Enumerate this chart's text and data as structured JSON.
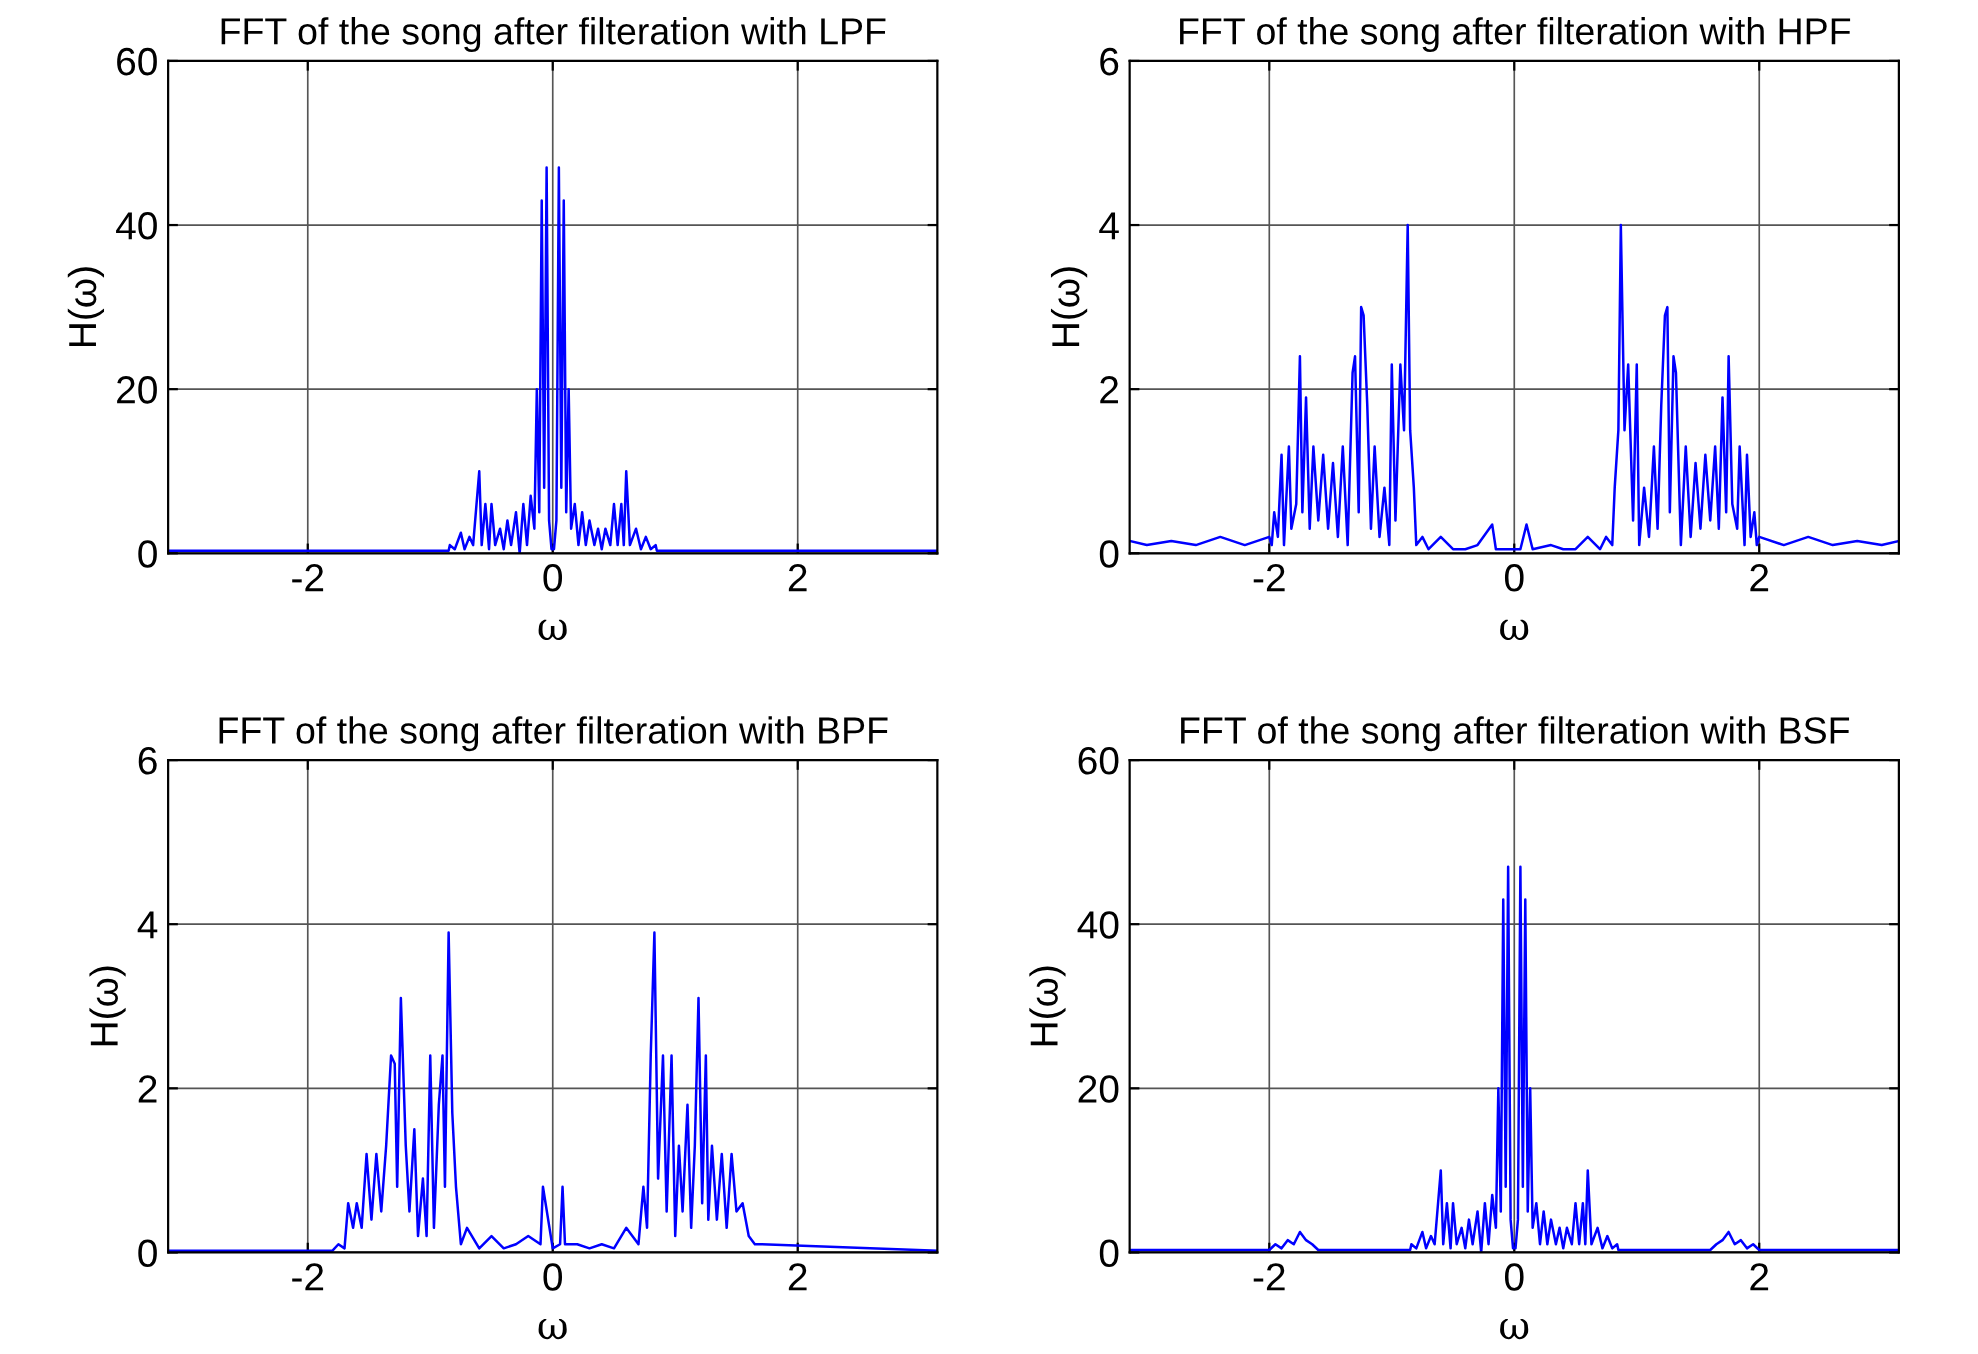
{
  "chart_data": [
    {
      "type": "line",
      "title": "FFT of the song after filteration with LPF",
      "xlabel": "ω",
      "ylabel": "H(ω)",
      "xlim": [
        -3.14,
        3.14
      ],
      "ylim": [
        0,
        60
      ],
      "xticks": [
        -2,
        0,
        2
      ],
      "yticks": [
        0,
        20,
        40,
        60
      ],
      "grid": true,
      "x": [
        -3.14,
        -0.85,
        -0.84,
        -0.8,
        -0.75,
        -0.72,
        -0.68,
        -0.65,
        -0.6,
        -0.58,
        -0.55,
        -0.52,
        -0.5,
        -0.47,
        -0.43,
        -0.4,
        -0.37,
        -0.34,
        -0.3,
        -0.27,
        -0.24,
        -0.21,
        -0.18,
        -0.15,
        -0.13,
        -0.11,
        -0.09,
        -0.07,
        -0.05,
        -0.03,
        -0.01,
        0.01,
        0.03,
        0.05,
        0.07,
        0.09,
        0.11,
        0.13,
        0.15,
        0.18,
        0.21,
        0.24,
        0.27,
        0.3,
        0.34,
        0.37,
        0.4,
        0.43,
        0.47,
        0.5,
        0.53,
        0.56,
        0.58,
        0.6,
        0.63,
        0.68,
        0.72,
        0.76,
        0.8,
        0.84,
        0.85,
        3.14
      ],
      "series": [
        {
          "color": "#0000ff",
          "values": [
            0.3,
            0.3,
            1,
            0.5,
            2.5,
            0.5,
            2,
            1,
            10,
            1,
            6,
            0.5,
            6,
            1,
            3,
            0.5,
            4,
            1,
            5,
            0,
            6,
            1,
            7,
            3,
            20,
            5,
            43,
            8,
            47,
            4,
            0.5,
            0.5,
            4,
            47,
            8,
            43,
            5,
            20,
            3,
            6,
            1,
            5,
            1,
            4,
            1,
            3,
            0.5,
            3,
            1,
            6,
            1,
            6,
            1,
            10,
            1,
            3,
            0.5,
            2,
            0.5,
            1,
            0.3,
            0.3
          ]
        }
      ]
    },
    {
      "type": "line",
      "title": "FFT of the song after filteration with HPF",
      "xlabel": "ω",
      "ylabel": "H(ω)",
      "xlim": [
        -3.14,
        3.14
      ],
      "ylim": [
        0,
        6
      ],
      "xticks": [
        -2,
        0,
        2
      ],
      "yticks": [
        0,
        2,
        4,
        6
      ],
      "grid": true,
      "x": [
        -3.14,
        -3.0,
        -2.8,
        -2.6,
        -2.4,
        -2.2,
        -2.0,
        -1.98,
        -1.96,
        -1.93,
        -1.9,
        -1.88,
        -1.84,
        -1.82,
        -1.78,
        -1.75,
        -1.73,
        -1.7,
        -1.67,
        -1.64,
        -1.6,
        -1.56,
        -1.52,
        -1.48,
        -1.44,
        -1.4,
        -1.36,
        -1.32,
        -1.3,
        -1.27,
        -1.25,
        -1.23,
        -1.2,
        -1.17,
        -1.14,
        -1.1,
        -1.06,
        -1.02,
        -1.0,
        -0.97,
        -0.93,
        -0.9,
        -0.87,
        -0.85,
        -0.82,
        -0.8,
        -0.75,
        -0.7,
        -0.6,
        -0.5,
        -0.4,
        -0.3,
        -0.18,
        -0.15,
        -0.05,
        0.05,
        0.1,
        0.15,
        0.3,
        0.4,
        0.5,
        0.6,
        0.7,
        0.75,
        0.8,
        0.82,
        0.85,
        0.87,
        0.9,
        0.93,
        0.97,
        1.0,
        1.02,
        1.06,
        1.1,
        1.14,
        1.17,
        1.2,
        1.23,
        1.25,
        1.27,
        1.3,
        1.32,
        1.36,
        1.4,
        1.44,
        1.48,
        1.52,
        1.56,
        1.6,
        1.64,
        1.67,
        1.7,
        1.73,
        1.75,
        1.78,
        1.82,
        1.84,
        1.88,
        1.9,
        1.93,
        1.96,
        1.98,
        2.0,
        2.2,
        2.4,
        2.6,
        2.8,
        3.0,
        3.14
      ],
      "series": [
        {
          "color": "#0000ff",
          "values": [
            0.15,
            0.1,
            0.15,
            0.1,
            0.2,
            0.1,
            0.2,
            0.1,
            0.5,
            0.2,
            1.2,
            0.1,
            1.3,
            0.3,
            0.6,
            2.4,
            0.5,
            1.9,
            0.3,
            1.3,
            0.4,
            1.2,
            0.3,
            1.1,
            0.2,
            1.3,
            0.1,
            2.2,
            2.4,
            0.5,
            3.0,
            2.9,
            1.8,
            0.3,
            1.3,
            0.2,
            0.8,
            0.1,
            2.3,
            0.4,
            2.3,
            1.5,
            4.0,
            1.5,
            0.8,
            0.1,
            0.2,
            0.05,
            0.2,
            0.05,
            0.05,
            0.1,
            0.35,
            0.05,
            0.05,
            0.05,
            0.35,
            0.05,
            0.1,
            0.05,
            0.05,
            0.2,
            0.05,
            0.2,
            0.1,
            0.8,
            1.5,
            4.0,
            1.5,
            2.3,
            0.4,
            2.3,
            0.1,
            0.8,
            0.2,
            1.3,
            0.3,
            1.8,
            2.9,
            3.0,
            0.5,
            2.4,
            2.2,
            0.1,
            1.3,
            0.2,
            1.1,
            0.3,
            1.2,
            0.4,
            1.3,
            0.3,
            1.9,
            0.5,
            2.4,
            0.6,
            0.3,
            1.3,
            0.1,
            1.2,
            0.2,
            0.5,
            0.1,
            0.2,
            0.1,
            0.2,
            0.1,
            0.15,
            0.1,
            0.15
          ]
        }
      ]
    },
    {
      "type": "line",
      "title": "FFT of the song after filteration with BPF",
      "xlabel": "ω",
      "ylabel": "H(ω)",
      "xlim": [
        -3.14,
        3.14
      ],
      "ylim": [
        0,
        6
      ],
      "xticks": [
        -2,
        0,
        2
      ],
      "yticks": [
        0,
        2,
        4,
        6
      ],
      "grid": true,
      "x": [
        -3.14,
        -1.8,
        -1.75,
        -1.7,
        -1.67,
        -1.63,
        -1.6,
        -1.56,
        -1.52,
        -1.48,
        -1.44,
        -1.4,
        -1.36,
        -1.32,
        -1.29,
        -1.27,
        -1.24,
        -1.2,
        -1.17,
        -1.13,
        -1.1,
        -1.06,
        -1.03,
        -1.0,
        -0.97,
        -0.93,
        -0.9,
        -0.88,
        -0.85,
        -0.82,
        -0.79,
        -0.75,
        -0.7,
        -0.6,
        -0.5,
        -0.4,
        -0.3,
        -0.2,
        -0.1,
        -0.08,
        0,
        0.06,
        0.08,
        0.1,
        0.2,
        0.3,
        0.4,
        0.5,
        0.6,
        0.7,
        0.74,
        0.77,
        0.8,
        0.83,
        0.86,
        0.9,
        0.93,
        0.97,
        1.0,
        1.03,
        1.06,
        1.1,
        1.13,
        1.16,
        1.19,
        1.22,
        1.25,
        1.27,
        1.3,
        1.34,
        1.38,
        1.42,
        1.46,
        1.5,
        1.55,
        1.6,
        1.65,
        1.7,
        3.14
      ],
      "series": [
        {
          "color": "#0000ff",
          "values": [
            0.02,
            0.02,
            0.1,
            0.05,
            0.6,
            0.3,
            0.6,
            0.3,
            1.2,
            0.4,
            1.2,
            0.5,
            1.3,
            2.4,
            2.3,
            0.8,
            3.1,
            1.3,
            0.5,
            1.5,
            0.2,
            0.9,
            0.2,
            2.4,
            0.3,
            1.8,
            2.4,
            0.8,
            3.9,
            1.7,
            0.8,
            0.1,
            0.3,
            0.05,
            0.2,
            0.05,
            0.1,
            0.2,
            0.1,
            0.8,
            0.05,
            0.1,
            0.8,
            0.1,
            0.1,
            0.05,
            0.1,
            0.05,
            0.3,
            0.1,
            0.8,
            0.3,
            2.4,
            3.9,
            0.9,
            2.4,
            0.5,
            2.4,
            0.2,
            1.3,
            0.5,
            1.8,
            0.3,
            1.3,
            3.1,
            0.6,
            2.4,
            0.4,
            1.3,
            0.4,
            1.2,
            0.3,
            1.2,
            0.5,
            0.6,
            0.2,
            0.1,
            0.1,
            0.02
          ]
        }
      ]
    },
    {
      "type": "line",
      "title": "FFT of the song after filteration with BSF",
      "xlabel": "ω",
      "ylabel": "H(ω)",
      "xlim": [
        -3.14,
        3.14
      ],
      "ylim": [
        0,
        60
      ],
      "xticks": [
        -2,
        0,
        2
      ],
      "yticks": [
        0,
        20,
        40,
        60
      ],
      "grid": true,
      "x": [
        -3.14,
        -2.0,
        -1.95,
        -1.9,
        -1.85,
        -1.8,
        -1.75,
        -1.7,
        -1.65,
        -1.6,
        -0.85,
        -0.84,
        -0.8,
        -0.75,
        -0.72,
        -0.68,
        -0.65,
        -0.6,
        -0.58,
        -0.55,
        -0.52,
        -0.5,
        -0.47,
        -0.43,
        -0.4,
        -0.37,
        -0.34,
        -0.3,
        -0.27,
        -0.24,
        -0.21,
        -0.18,
        -0.15,
        -0.13,
        -0.11,
        -0.09,
        -0.07,
        -0.05,
        -0.03,
        -0.01,
        0.01,
        0.03,
        0.05,
        0.07,
        0.09,
        0.11,
        0.13,
        0.15,
        0.18,
        0.21,
        0.24,
        0.27,
        0.3,
        0.34,
        0.37,
        0.4,
        0.43,
        0.47,
        0.5,
        0.53,
        0.56,
        0.58,
        0.6,
        0.63,
        0.68,
        0.72,
        0.76,
        0.8,
        0.84,
        0.85,
        1.6,
        1.65,
        1.7,
        1.75,
        1.8,
        1.85,
        1.9,
        1.95,
        2.0,
        3.14
      ],
      "series": [
        {
          "color": "#0000ff",
          "values": [
            0.3,
            0.3,
            1,
            0.5,
            1.5,
            1,
            2.5,
            1.5,
            1,
            0.3,
            0.3,
            1,
            0.5,
            2.5,
            0.5,
            2,
            1,
            10,
            1,
            6,
            0.5,
            6,
            1,
            3,
            0.5,
            4,
            1,
            5,
            0,
            6,
            1,
            7,
            3,
            20,
            5,
            43,
            8,
            47,
            4,
            0.5,
            0.5,
            4,
            47,
            8,
            43,
            5,
            20,
            3,
            6,
            1,
            5,
            1,
            4,
            1,
            3,
            0.5,
            3,
            1,
            6,
            1,
            6,
            1,
            10,
            1,
            3,
            0.5,
            2,
            0.5,
            1,
            0.3,
            0.3,
            1,
            1.5,
            2.5,
            1,
            1.5,
            0.5,
            1,
            0.3,
            0.3
          ]
        }
      ]
    }
  ]
}
